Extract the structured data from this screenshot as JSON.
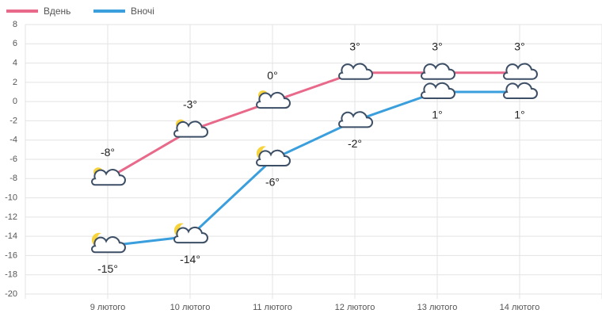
{
  "chart_data": {
    "type": "line",
    "categories": [
      "9 лютого",
      "10 лютого",
      "11 лютого",
      "12 лютого",
      "13 лютого",
      "14 лютого"
    ],
    "series": [
      {
        "name": "Вдень",
        "color": "#e8698a",
        "values": [
          -8,
          -3,
          0,
          3,
          3,
          3
        ],
        "value_labels": [
          "-8°",
          "-3°",
          "0°",
          "3°",
          "3°",
          "3°"
        ]
      },
      {
        "name": "Вночі",
        "color": "#3a9fdc",
        "values": [
          -15,
          -14,
          -6,
          -2,
          1,
          1
        ],
        "value_labels": [
          "-15°",
          "-14°",
          "-6°",
          "-2°",
          "1°",
          "1°"
        ]
      }
    ],
    "ylim": [
      -20,
      8
    ],
    "yticks": [
      -20,
      -18,
      -16,
      -14,
      -12,
      -10,
      -8,
      -6,
      -4,
      -2,
      0,
      2,
      4,
      6,
      8
    ],
    "grid": true,
    "legend": "top-left"
  }
}
